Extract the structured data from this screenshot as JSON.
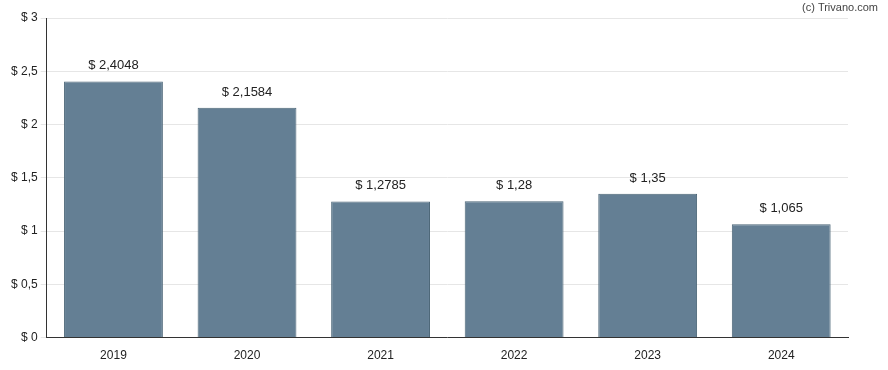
{
  "chart_data": {
    "type": "bar",
    "categories": [
      "2019",
      "2020",
      "2021",
      "2022",
      "2023",
      "2024"
    ],
    "values": [
      2.4048,
      2.1584,
      1.2785,
      1.28,
      1.35,
      1.065
    ],
    "value_labels": [
      "$ 2,4048",
      "$ 2,1584",
      "$ 1,2785",
      "$ 1,28",
      "$ 1,35",
      "$ 1,065"
    ],
    "data_labels": true,
    "color": "#647f94",
    "ylim": [
      0,
      3
    ],
    "yticks": [
      {
        "value": 0,
        "label": "$ 0"
      },
      {
        "value": 0.5,
        "label": "$ 0,5"
      },
      {
        "value": 1,
        "label": "$ 1"
      },
      {
        "value": 1.5,
        "label": "$ 1,5"
      },
      {
        "value": 2,
        "label": "$ 2"
      },
      {
        "value": 2.5,
        "label": "$ 2,5"
      },
      {
        "value": 3,
        "label": "$ 3"
      }
    ],
    "grid": true,
    "annotations": [
      "(c) Trivano.com"
    ]
  }
}
